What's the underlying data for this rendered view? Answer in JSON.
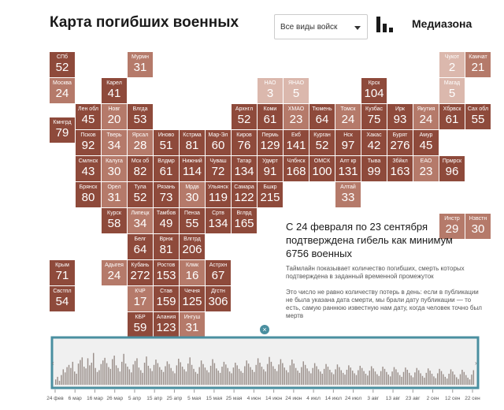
{
  "header": {
    "title": "Карта погибших военных",
    "select_value": "Все виды войск",
    "brand": "Медиазона"
  },
  "text": {
    "headline": "С 24 февраля по 23 сентября подтверждена гибель как минимум 6756 военных",
    "desc1": "Таймлайн показывает количество погибших, смерть которых подтверждена в заданный временной промежуток",
    "desc2": "Это число не равно количеству потерь в день: если в публикации не была указана дата смерти, мы брали дату публикации — то есть, самую раннюю известную нам дату, когда человек точно был мертв"
  },
  "close_symbol": "×",
  "colors": {
    "text": "#222222",
    "dark": "#8e4a3b",
    "mid": "#b57a6a",
    "light": "#dbb8ad",
    "timeline_border": "#4a8fa0",
    "timeline_bar": "#9a8f8a",
    "timeline_bg": "#f0f0f0"
  },
  "chart_data": [
    {
      "type": "heatmap",
      "title": "",
      "cells": [
        {
          "name": "СПб",
          "value": 52,
          "col": 0,
          "row": 0
        },
        {
          "name": "Москва",
          "value": 24,
          "col": 0,
          "row": 1
        },
        {
          "name": "Кмнгрд",
          "value": 79,
          "col": 0,
          "row": 2.5
        },
        {
          "name": "Мурмн",
          "value": 31,
          "col": 3,
          "row": 0
        },
        {
          "name": "Карел",
          "value": 41,
          "col": 2,
          "row": 1
        },
        {
          "name": "Лен обл",
          "value": 45,
          "col": 1,
          "row": 2
        },
        {
          "name": "Новг",
          "value": 20,
          "col": 2,
          "row": 2
        },
        {
          "name": "Влгда",
          "value": 53,
          "col": 3,
          "row": 2
        },
        {
          "name": "Псков",
          "value": 92,
          "col": 1,
          "row": 3
        },
        {
          "name": "Тверь",
          "value": 34,
          "col": 2,
          "row": 3
        },
        {
          "name": "Ярсал",
          "value": 28,
          "col": 3,
          "row": 3
        },
        {
          "name": "Иново",
          "value": 51,
          "col": 4,
          "row": 3
        },
        {
          "name": "Кстрма",
          "value": 81,
          "col": 5,
          "row": 3
        },
        {
          "name": "Смлнск",
          "value": 43,
          "col": 1,
          "row": 4
        },
        {
          "name": "Калуга",
          "value": 30,
          "col": 2,
          "row": 4
        },
        {
          "name": "Мск об",
          "value": 82,
          "col": 3,
          "row": 4
        },
        {
          "name": "Влдмр",
          "value": 61,
          "col": 4,
          "row": 4
        },
        {
          "name": "Нижний",
          "value": 114,
          "col": 5,
          "row": 4
        },
        {
          "name": "Брянск",
          "value": 80,
          "col": 1,
          "row": 5
        },
        {
          "name": "Орел",
          "value": 31,
          "col": 2,
          "row": 5
        },
        {
          "name": "Тула",
          "value": 52,
          "col": 3,
          "row": 5
        },
        {
          "name": "Рязань",
          "value": 73,
          "col": 4,
          "row": 5
        },
        {
          "name": "Мрдв",
          "value": 30,
          "col": 5,
          "row": 5
        },
        {
          "name": "Курск",
          "value": 58,
          "col": 2,
          "row": 6
        },
        {
          "name": "Липецк",
          "value": 34,
          "col": 3,
          "row": 6
        },
        {
          "name": "Тамбов",
          "value": 49,
          "col": 4,
          "row": 6
        },
        {
          "name": "Пенза",
          "value": 55,
          "col": 5,
          "row": 6
        },
        {
          "name": "Белг",
          "value": 64,
          "col": 3,
          "row": 7
        },
        {
          "name": "Врнж",
          "value": 81,
          "col": 4,
          "row": 7
        },
        {
          "name": "Влггрд",
          "value": 206,
          "col": 5,
          "row": 7
        },
        {
          "name": "Адыгея",
          "value": 24,
          "col": 2,
          "row": 8
        },
        {
          "name": "Кубань",
          "value": 272,
          "col": 3,
          "row": 8
        },
        {
          "name": "Ростов",
          "value": 153,
          "col": 4,
          "row": 8
        },
        {
          "name": "Клмк",
          "value": 16,
          "col": 5,
          "row": 8
        },
        {
          "name": "Астрхн",
          "value": 67,
          "col": 6,
          "row": 8
        },
        {
          "name": "КЧР",
          "value": 17,
          "col": 3,
          "row": 9
        },
        {
          "name": "Став",
          "value": 159,
          "col": 4,
          "row": 9
        },
        {
          "name": "Чечня",
          "value": 125,
          "col": 5,
          "row": 9
        },
        {
          "name": "Дгстн",
          "value": 306,
          "col": 6,
          "row": 9
        },
        {
          "name": "КБР",
          "value": 59,
          "col": 3,
          "row": 10
        },
        {
          "name": "Алания",
          "value": 123,
          "col": 4,
          "row": 10
        },
        {
          "name": "Ингуш",
          "value": 31,
          "col": 5,
          "row": 10
        },
        {
          "name": "Крым",
          "value": 71,
          "col": 0,
          "row": 8
        },
        {
          "name": "Свстпл",
          "value": 54,
          "col": 0,
          "row": 9
        },
        {
          "name": "Мар-Эл",
          "value": 60,
          "col": 6,
          "row": 3
        },
        {
          "name": "Чуваш",
          "value": 72,
          "col": 6,
          "row": 4
        },
        {
          "name": "Ульянск",
          "value": 119,
          "col": 6,
          "row": 5
        },
        {
          "name": "Сртв",
          "value": 134,
          "col": 6,
          "row": 6
        },
        {
          "name": "Архнгл",
          "value": 52,
          "col": 7,
          "row": 2
        },
        {
          "name": "Киров",
          "value": 76,
          "col": 7,
          "row": 3
        },
        {
          "name": "Татар",
          "value": 134,
          "col": 7,
          "row": 4
        },
        {
          "name": "Самара",
          "value": 122,
          "col": 7,
          "row": 5
        },
        {
          "name": "Вглрд",
          "value": 165,
          "col": 7,
          "row": 6
        },
        {
          "name": "НАО",
          "value": 3,
          "col": 8,
          "row": 1
        },
        {
          "name": "Коми",
          "value": 61,
          "col": 8,
          "row": 2
        },
        {
          "name": "Пермь",
          "value": 129,
          "col": 8,
          "row": 3
        },
        {
          "name": "Удмрт",
          "value": 91,
          "col": 8,
          "row": 4
        },
        {
          "name": "Бшкр",
          "value": 215,
          "col": 8,
          "row": 5
        },
        {
          "name": "ЯНАО",
          "value": 5,
          "col": 9,
          "row": 1
        },
        {
          "name": "ХМАО",
          "value": 23,
          "col": 9,
          "row": 2
        },
        {
          "name": "Екб",
          "value": 141,
          "col": 9,
          "row": 3
        },
        {
          "name": "Члбнск",
          "value": 168,
          "col": 9,
          "row": 4
        },
        {
          "name": "Тюмень",
          "value": 64,
          "col": 10,
          "row": 2
        },
        {
          "name": "Курган",
          "value": 52,
          "col": 10,
          "row": 3
        },
        {
          "name": "ОМСК",
          "value": 100,
          "col": 10,
          "row": 4
        },
        {
          "name": "Томск",
          "value": 24,
          "col": 11,
          "row": 2
        },
        {
          "name": "Нск",
          "value": 97,
          "col": 11,
          "row": 3
        },
        {
          "name": "Алт кр",
          "value": 131,
          "col": 11,
          "row": 4
        },
        {
          "name": "Алтай",
          "value": 33,
          "col": 11,
          "row": 5
        },
        {
          "name": "Крск",
          "value": 104,
          "col": 12,
          "row": 1
        },
        {
          "name": "Кузбас",
          "value": 75,
          "col": 12,
          "row": 2
        },
        {
          "name": "Хакас",
          "value": 42,
          "col": 12,
          "row": 3
        },
        {
          "name": "Тыва",
          "value": 99,
          "col": 12,
          "row": 4
        },
        {
          "name": "Ирк",
          "value": 93,
          "col": 13,
          "row": 2
        },
        {
          "name": "Бурят",
          "value": 276,
          "col": 13,
          "row": 3
        },
        {
          "name": "Збйкл",
          "value": 163,
          "col": 13,
          "row": 4
        },
        {
          "name": "Якутия",
          "value": 24,
          "col": 14,
          "row": 2
        },
        {
          "name": "Амур",
          "value": 45,
          "col": 14,
          "row": 3
        },
        {
          "name": "ЕАО",
          "value": 23,
          "col": 14,
          "row": 4
        },
        {
          "name": "Чукот",
          "value": 2,
          "col": 15,
          "row": 0
        },
        {
          "name": "Магад",
          "value": 5,
          "col": 15,
          "row": 1
        },
        {
          "name": "Хбрвск",
          "value": 61,
          "col": 15,
          "row": 2
        },
        {
          "name": "Прмрск",
          "value": 96,
          "col": 15,
          "row": 4
        },
        {
          "name": "Камчат",
          "value": 21,
          "col": 16,
          "row": 0
        },
        {
          "name": "Сах обл",
          "value": 55,
          "col": 16,
          "row": 2
        },
        {
          "name": "Инстр",
          "value": 29,
          "col": 15,
          "row": 6.2
        },
        {
          "name": "Нзвстн",
          "value": 30,
          "col": 16,
          "row": 6.2
        }
      ]
    },
    {
      "type": "bar",
      "title": "",
      "x_tick_labels": [
        "24 фев",
        "6 мар",
        "16 мар",
        "26 мар",
        "5 апр",
        "15 апр",
        "25 апр",
        "5 мая",
        "15 мая",
        "25 мая",
        "4 июн",
        "14 июн",
        "24 июн",
        "4 июл",
        "14 июл",
        "24 июл",
        "3 авг",
        "13 авг",
        "23 авг",
        "2 сен",
        "12 сен",
        "22 сен"
      ],
      "values": [
        12,
        18,
        9,
        22,
        35,
        28,
        40,
        45,
        38,
        52,
        30,
        25,
        48,
        56,
        62,
        41,
        37,
        60,
        44,
        50,
        72,
        38,
        29,
        33,
        47,
        55,
        61,
        49,
        40,
        36,
        58,
        66,
        44,
        38,
        30,
        52,
        70,
        48,
        41,
        35,
        28,
        46,
        54,
        60,
        39,
        33,
        27,
        50,
        64,
        43,
        37,
        31,
        45,
        57,
        49,
        40,
        34,
        29,
        42,
        53,
        47,
        38,
        31,
        26,
        44,
        59,
        51,
        41,
        35,
        30,
        48,
        62,
        45,
        36,
        29,
        25,
        40,
        55,
        47,
        39,
        33,
        28,
        43,
        58,
        49,
        37,
        32,
        27,
        41,
        52,
        46,
        38,
        30,
        26,
        39,
        50,
        44,
        36,
        31,
        27,
        42,
        55,
        48,
        40,
        34,
        29,
        45,
        60,
        50,
        41,
        35,
        30,
        47,
        63,
        52,
        42,
        36,
        31,
        46,
        58,
        49,
        39,
        33,
        28,
        44,
        57,
        48,
        38,
        32,
        27,
        40,
        53,
        45,
        37,
        31,
        26,
        38,
        49,
        42,
        35,
        30,
        25,
        36,
        47,
        41,
        34,
        28,
        24,
        35,
        46,
        40,
        33,
        27,
        23,
        34,
        44,
        39,
        32,
        26,
        22,
        33,
        43,
        38,
        31,
        25,
        21,
        32,
        42,
        37,
        30,
        24,
        20,
        31,
        41,
        36,
        29,
        23,
        19,
        30,
        40,
        35,
        28,
        22,
        18,
        29,
        39,
        34,
        27,
        21,
        17,
        28,
        38,
        33,
        26,
        20,
        16,
        27,
        37,
        32,
        25,
        19,
        15,
        26,
        36,
        31,
        24,
        18,
        14,
        25,
        35,
        30,
        23,
        17,
        13,
        24,
        34,
        29,
        22,
        16,
        12,
        23,
        33
      ],
      "ylim": [
        0,
        100
      ]
    }
  ]
}
